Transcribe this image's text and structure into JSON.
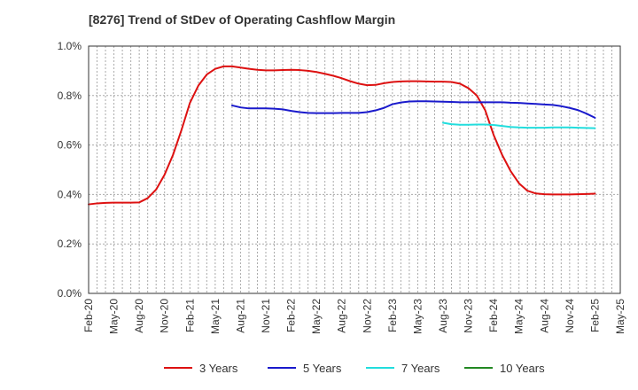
{
  "chart_data": {
    "type": "line",
    "title": "[8276]  Trend of StDev of Operating Cashflow Margin",
    "xlabel": "",
    "ylabel": "",
    "x_ticks": [
      "Feb-20",
      "May-20",
      "Aug-20",
      "Nov-20",
      "Feb-21",
      "May-21",
      "Aug-21",
      "Nov-21",
      "Feb-22",
      "May-22",
      "Aug-22",
      "Nov-22",
      "Feb-23",
      "May-23",
      "Aug-23",
      "Nov-23",
      "Feb-24",
      "May-24",
      "Aug-24",
      "Nov-24",
      "Feb-25",
      "May-25"
    ],
    "y_ticks": [
      "0.0%",
      "0.2%",
      "0.4%",
      "0.6%",
      "0.8%",
      "1.0%"
    ],
    "ylim": [
      0,
      1.0
    ],
    "grid": true,
    "legend_position": "bottom",
    "series": [
      {
        "name": "3 Years",
        "color": "#dd1111",
        "values": [
          {
            "x": "2020-02",
            "y": 0.36
          },
          {
            "x": "2020-03",
            "y": 0.364
          },
          {
            "x": "2020-04",
            "y": 0.366
          },
          {
            "x": "2020-05",
            "y": 0.367
          },
          {
            "x": "2020-06",
            "y": 0.367
          },
          {
            "x": "2020-07",
            "y": 0.367
          },
          {
            "x": "2020-08",
            "y": 0.368
          },
          {
            "x": "2020-09",
            "y": 0.385
          },
          {
            "x": "2020-10",
            "y": 0.42
          },
          {
            "x": "2020-11",
            "y": 0.48
          },
          {
            "x": "2020-12",
            "y": 0.56
          },
          {
            "x": "2021-01",
            "y": 0.66
          },
          {
            "x": "2021-02",
            "y": 0.77
          },
          {
            "x": "2021-03",
            "y": 0.84
          },
          {
            "x": "2021-04",
            "y": 0.885
          },
          {
            "x": "2021-05",
            "y": 0.908
          },
          {
            "x": "2021-06",
            "y": 0.918
          },
          {
            "x": "2021-07",
            "y": 0.918
          },
          {
            "x": "2021-08",
            "y": 0.913
          },
          {
            "x": "2021-09",
            "y": 0.908
          },
          {
            "x": "2021-10",
            "y": 0.904
          },
          {
            "x": "2021-11",
            "y": 0.902
          },
          {
            "x": "2021-12",
            "y": 0.902
          },
          {
            "x": "2022-01",
            "y": 0.903
          },
          {
            "x": "2022-02",
            "y": 0.904
          },
          {
            "x": "2022-03",
            "y": 0.903
          },
          {
            "x": "2022-04",
            "y": 0.9
          },
          {
            "x": "2022-05",
            "y": 0.895
          },
          {
            "x": "2022-06",
            "y": 0.888
          },
          {
            "x": "2022-07",
            "y": 0.88
          },
          {
            "x": "2022-08",
            "y": 0.87
          },
          {
            "x": "2022-09",
            "y": 0.858
          },
          {
            "x": "2022-10",
            "y": 0.848
          },
          {
            "x": "2022-11",
            "y": 0.842
          },
          {
            "x": "2022-12",
            "y": 0.843
          },
          {
            "x": "2023-01",
            "y": 0.85
          },
          {
            "x": "2023-02",
            "y": 0.855
          },
          {
            "x": "2023-03",
            "y": 0.857
          },
          {
            "x": "2023-04",
            "y": 0.858
          },
          {
            "x": "2023-05",
            "y": 0.858
          },
          {
            "x": "2023-06",
            "y": 0.857
          },
          {
            "x": "2023-07",
            "y": 0.856
          },
          {
            "x": "2023-08",
            "y": 0.856
          },
          {
            "x": "2023-09",
            "y": 0.855
          },
          {
            "x": "2023-10",
            "y": 0.848
          },
          {
            "x": "2023-11",
            "y": 0.83
          },
          {
            "x": "2023-12",
            "y": 0.8
          },
          {
            "x": "2024-01",
            "y": 0.74
          },
          {
            "x": "2024-02",
            "y": 0.64
          },
          {
            "x": "2024-03",
            "y": 0.56
          },
          {
            "x": "2024-04",
            "y": 0.495
          },
          {
            "x": "2024-05",
            "y": 0.445
          },
          {
            "x": "2024-06",
            "y": 0.415
          },
          {
            "x": "2024-07",
            "y": 0.404
          },
          {
            "x": "2024-08",
            "y": 0.401
          },
          {
            "x": "2024-09",
            "y": 0.4
          },
          {
            "x": "2024-10",
            "y": 0.4
          },
          {
            "x": "2024-11",
            "y": 0.4
          },
          {
            "x": "2024-12",
            "y": 0.401
          },
          {
            "x": "2025-01",
            "y": 0.402
          },
          {
            "x": "2025-02",
            "y": 0.403
          }
        ]
      },
      {
        "name": "5 Years",
        "color": "#1a1acc",
        "values": [
          {
            "x": "2021-07",
            "y": 0.76
          },
          {
            "x": "2021-08",
            "y": 0.752
          },
          {
            "x": "2021-09",
            "y": 0.748
          },
          {
            "x": "2021-10",
            "y": 0.748
          },
          {
            "x": "2021-11",
            "y": 0.748
          },
          {
            "x": "2021-12",
            "y": 0.747
          },
          {
            "x": "2022-01",
            "y": 0.744
          },
          {
            "x": "2022-02",
            "y": 0.738
          },
          {
            "x": "2022-03",
            "y": 0.733
          },
          {
            "x": "2022-04",
            "y": 0.73
          },
          {
            "x": "2022-05",
            "y": 0.729
          },
          {
            "x": "2022-06",
            "y": 0.729
          },
          {
            "x": "2022-07",
            "y": 0.729
          },
          {
            "x": "2022-08",
            "y": 0.73
          },
          {
            "x": "2022-09",
            "y": 0.73
          },
          {
            "x": "2022-10",
            "y": 0.73
          },
          {
            "x": "2022-11",
            "y": 0.733
          },
          {
            "x": "2022-12",
            "y": 0.74
          },
          {
            "x": "2023-01",
            "y": 0.75
          },
          {
            "x": "2023-02",
            "y": 0.765
          },
          {
            "x": "2023-03",
            "y": 0.772
          },
          {
            "x": "2023-04",
            "y": 0.776
          },
          {
            "x": "2023-05",
            "y": 0.777
          },
          {
            "x": "2023-06",
            "y": 0.777
          },
          {
            "x": "2023-07",
            "y": 0.776
          },
          {
            "x": "2023-08",
            "y": 0.775
          },
          {
            "x": "2023-09",
            "y": 0.774
          },
          {
            "x": "2023-10",
            "y": 0.773
          },
          {
            "x": "2023-11",
            "y": 0.773
          },
          {
            "x": "2023-12",
            "y": 0.773
          },
          {
            "x": "2024-01",
            "y": 0.773
          },
          {
            "x": "2024-02",
            "y": 0.773
          },
          {
            "x": "2024-03",
            "y": 0.773
          },
          {
            "x": "2024-04",
            "y": 0.771
          },
          {
            "x": "2024-05",
            "y": 0.77
          },
          {
            "x": "2024-06",
            "y": 0.768
          },
          {
            "x": "2024-07",
            "y": 0.766
          },
          {
            "x": "2024-08",
            "y": 0.764
          },
          {
            "x": "2024-09",
            "y": 0.762
          },
          {
            "x": "2024-10",
            "y": 0.757
          },
          {
            "x": "2024-11",
            "y": 0.75
          },
          {
            "x": "2024-12",
            "y": 0.741
          },
          {
            "x": "2025-01",
            "y": 0.727
          },
          {
            "x": "2025-02",
            "y": 0.71
          }
        ]
      },
      {
        "name": "7 Years",
        "color": "#22dddd",
        "values": [
          {
            "x": "2023-08",
            "y": 0.69
          },
          {
            "x": "2023-09",
            "y": 0.684
          },
          {
            "x": "2023-10",
            "y": 0.682
          },
          {
            "x": "2023-11",
            "y": 0.682
          },
          {
            "x": "2023-12",
            "y": 0.683
          },
          {
            "x": "2024-01",
            "y": 0.683
          },
          {
            "x": "2024-02",
            "y": 0.681
          },
          {
            "x": "2024-03",
            "y": 0.677
          },
          {
            "x": "2024-04",
            "y": 0.673
          },
          {
            "x": "2024-05",
            "y": 0.671
          },
          {
            "x": "2024-06",
            "y": 0.67
          },
          {
            "x": "2024-07",
            "y": 0.67
          },
          {
            "x": "2024-08",
            "y": 0.67
          },
          {
            "x": "2024-09",
            "y": 0.671
          },
          {
            "x": "2024-10",
            "y": 0.671
          },
          {
            "x": "2024-11",
            "y": 0.671
          },
          {
            "x": "2024-12",
            "y": 0.67
          },
          {
            "x": "2025-01",
            "y": 0.669
          },
          {
            "x": "2025-02",
            "y": 0.668
          }
        ]
      },
      {
        "name": "10 Years",
        "color": "#228822",
        "values": []
      }
    ]
  }
}
